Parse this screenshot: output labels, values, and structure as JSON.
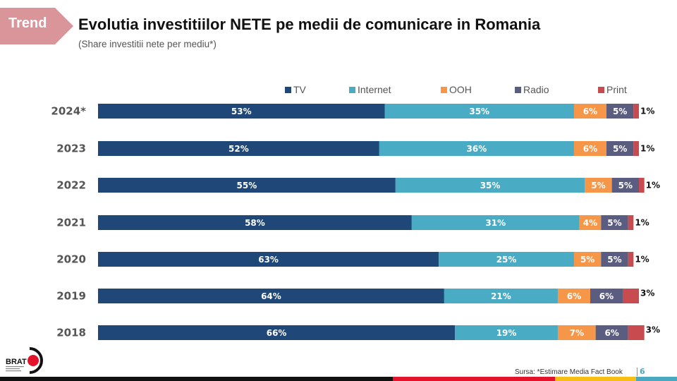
{
  "header": {
    "tag_label": "Trend",
    "title": "Evolutia investitiilor NETE pe medii de comunicare in Romania",
    "subtitle": "(Share investitii nete per mediu*)"
  },
  "colors": {
    "tag": "#d9959a",
    "TV": "#1f4778",
    "Internet": "#4aabc4",
    "OOH": "#f59648",
    "Radio": "#5b5d80",
    "Print": "#c84b50"
  },
  "chart_data": {
    "type": "bar",
    "orientation": "horizontal",
    "stacked": true,
    "title": "Evolutia investitiilor NETE pe medii de comunicare in Romania",
    "subtitle": "(Share investitii nete per mediu*)",
    "xlabel": "",
    "ylabel": "",
    "xlim": [
      0,
      100
    ],
    "unit": "%",
    "grid": false,
    "legend_position": "top",
    "categories": [
      "2024*",
      "2023",
      "2022",
      "2021",
      "2020",
      "2019",
      "2018"
    ],
    "series": [
      {
        "name": "TV",
        "values": [
          53,
          52,
          55,
          58,
          63,
          64,
          66
        ]
      },
      {
        "name": "Internet",
        "values": [
          35,
          36,
          35,
          31,
          25,
          21,
          19
        ]
      },
      {
        "name": "OOH",
        "values": [
          6,
          6,
          5,
          4,
          5,
          6,
          7
        ]
      },
      {
        "name": "Radio",
        "values": [
          5,
          5,
          5,
          5,
          5,
          6,
          6
        ]
      },
      {
        "name": "Print",
        "values": [
          1,
          1,
          1,
          1,
          1,
          3,
          3
        ]
      }
    ]
  },
  "footer": {
    "logo_text": "BRAT",
    "source": "Sursa: *Estimare Media Fact Book",
    "page_number": "6",
    "stripe_colors": [
      "#111111",
      "#e4132b",
      "#f7bf16",
      "#4aa8c0"
    ]
  }
}
